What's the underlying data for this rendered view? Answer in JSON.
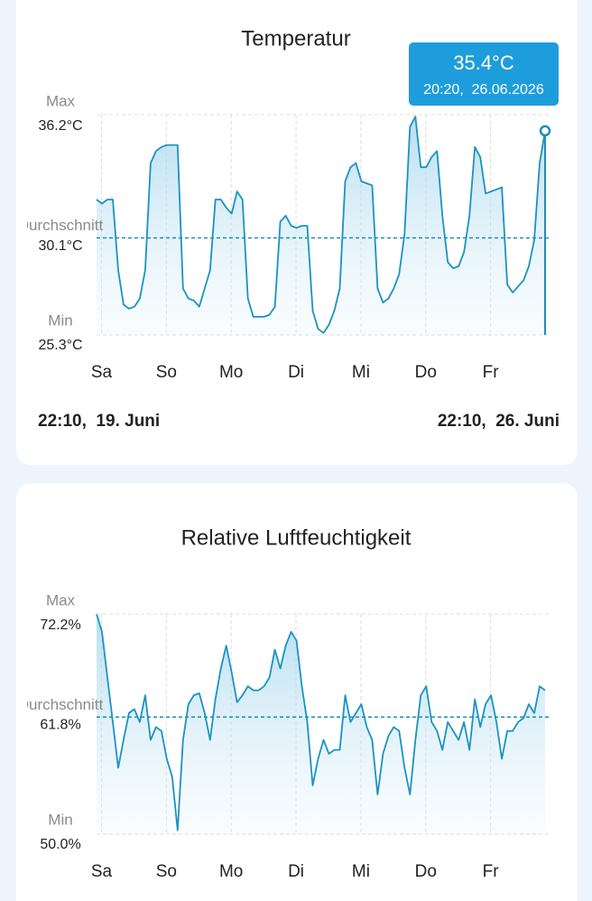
{
  "chart_data": [
    {
      "type": "line",
      "title": "Temperatur",
      "color": "#1b93c2",
      "x": [
        0,
        2,
        4,
        6,
        8,
        10,
        12,
        14,
        16,
        18,
        20,
        22,
        24,
        26,
        28,
        30,
        32,
        34,
        36,
        38,
        40,
        42,
        44,
        46,
        48,
        50,
        52,
        54,
        56,
        58,
        60,
        62,
        64,
        66,
        68,
        70,
        72,
        74,
        76,
        78,
        80,
        82,
        84,
        86,
        88,
        90,
        92,
        94,
        96,
        98,
        100,
        102,
        104,
        106,
        108,
        110,
        112,
        114,
        116,
        118,
        120,
        122,
        124,
        126,
        128,
        130,
        132,
        134,
        136,
        138,
        140,
        142,
        144,
        146,
        148,
        150,
        152,
        154,
        156,
        158,
        160,
        162,
        164,
        166
      ],
      "values": [
        32.0,
        31.8,
        32.0,
        32.0,
        28.5,
        26.8,
        26.6,
        26.7,
        27.1,
        28.5,
        33.8,
        34.4,
        34.6,
        34.7,
        34.7,
        34.7,
        27.6,
        27.1,
        27.0,
        26.7,
        27.6,
        28.5,
        32.0,
        32.0,
        31.6,
        31.3,
        32.4,
        32.0,
        27.1,
        26.2,
        26.2,
        26.2,
        26.3,
        26.7,
        30.9,
        31.2,
        30.7,
        30.6,
        30.7,
        30.7,
        26.5,
        25.6,
        25.4,
        25.8,
        26.5,
        27.6,
        32.9,
        33.6,
        33.8,
        32.9,
        32.8,
        32.7,
        27.6,
        26.9,
        27.1,
        27.6,
        28.3,
        30.3,
        35.6,
        36.1,
        33.6,
        33.6,
        34.1,
        34.4,
        31.2,
        28.9,
        28.6,
        28.7,
        29.4,
        31.2,
        34.6,
        34.1,
        32.3,
        32.4,
        32.5,
        32.6,
        27.8,
        27.4,
        27.7,
        28.0,
        28.7,
        30.0,
        33.8,
        35.4
      ],
      "xlim": [
        0,
        168
      ],
      "xticks": [
        {
          "value": 1.83,
          "label": "Sa"
        },
        {
          "value": 25.83,
          "label": "So"
        },
        {
          "value": 49.83,
          "label": "Mo"
        },
        {
          "value": 73.83,
          "label": "Di"
        },
        {
          "value": 97.83,
          "label": "Mi"
        },
        {
          "value": 121.83,
          "label": "Do"
        },
        {
          "value": 145.83,
          "label": "Fr"
        }
      ],
      "ylim": [
        25.3,
        36.2
      ],
      "yticks": [
        {
          "value": 36.2,
          "label": "36.2°C"
        },
        {
          "value": 30.1,
          "label": "30.1°C"
        },
        {
          "value": 25.3,
          "label": "25.3°C"
        }
      ],
      "ytick_names": [
        "Max",
        "Durchschnitt",
        "Min"
      ],
      "start_label": "22:10,  19. Juni",
      "end_label": "22:10,  26. Juni",
      "tooltip": {
        "x": 166,
        "value": 35.4,
        "value_label": "35.4°C",
        "time": "20:20,  26.06.2026"
      }
    },
    {
      "type": "line",
      "title": "Relative Luftfeuchtigkeit",
      "color": "#1b93c2",
      "x": [
        0,
        2,
        4,
        6,
        8,
        10,
        12,
        14,
        16,
        18,
        20,
        22,
        24,
        26,
        28,
        30,
        32,
        34,
        36,
        38,
        40,
        42,
        44,
        46,
        48,
        50,
        52,
        54,
        56,
        58,
        60,
        62,
        64,
        66,
        68,
        70,
        72,
        74,
        76,
        78,
        80,
        82,
        84,
        86,
        88,
        90,
        92,
        94,
        96,
        98,
        100,
        102,
        104,
        106,
        108,
        110,
        112,
        114,
        116,
        118,
        120,
        122,
        124,
        126,
        128,
        130,
        132,
        134,
        136,
        138,
        140,
        142,
        144,
        146,
        148,
        150,
        152,
        154,
        156,
        158,
        160,
        162,
        164,
        166
      ],
      "values": [
        72.2,
        70.4,
        65.8,
        61.3,
        56.7,
        59.5,
        62.2,
        62.6,
        61.3,
        64.0,
        59.5,
        60.8,
        60.4,
        57.6,
        55.8,
        50.4,
        59.5,
        63.1,
        64.0,
        64.2,
        62.2,
        59.5,
        63.6,
        66.7,
        69.0,
        66.3,
        63.3,
        64.0,
        64.9,
        64.5,
        64.5,
        64.9,
        65.8,
        68.6,
        66.7,
        69.0,
        70.4,
        69.5,
        64.9,
        61.3,
        54.9,
        57.6,
        59.5,
        58.1,
        58.5,
        58.5,
        64.0,
        61.3,
        62.2,
        63.1,
        60.8,
        59.5,
        54.0,
        58.1,
        59.9,
        60.8,
        60.4,
        56.7,
        54.0,
        59.5,
        64.0,
        64.9,
        61.3,
        60.4,
        58.5,
        61.3,
        60.4,
        59.5,
        61.3,
        58.5,
        63.6,
        60.8,
        63.1,
        64.0,
        61.3,
        57.6,
        60.4,
        60.4,
        61.3,
        61.7,
        63.1,
        62.2,
        64.9,
        64.5
      ],
      "xlim": [
        0,
        168
      ],
      "xticks": [
        {
          "value": 1.83,
          "label": "Sa"
        },
        {
          "value": 25.83,
          "label": "So"
        },
        {
          "value": 49.83,
          "label": "Mo"
        },
        {
          "value": 73.83,
          "label": "Di"
        },
        {
          "value": 97.83,
          "label": "Mi"
        },
        {
          "value": 121.83,
          "label": "Do"
        },
        {
          "value": 145.83,
          "label": "Fr"
        }
      ],
      "ylim": [
        50.0,
        72.2
      ],
      "yticks": [
        {
          "value": 72.2,
          "label": "72.2%"
        },
        {
          "value": 61.8,
          "label": "61.8%"
        },
        {
          "value": 50.0,
          "label": "50.0%"
        }
      ],
      "ytick_names": [
        "Max",
        "Durchschnitt",
        "Min"
      ]
    }
  ]
}
